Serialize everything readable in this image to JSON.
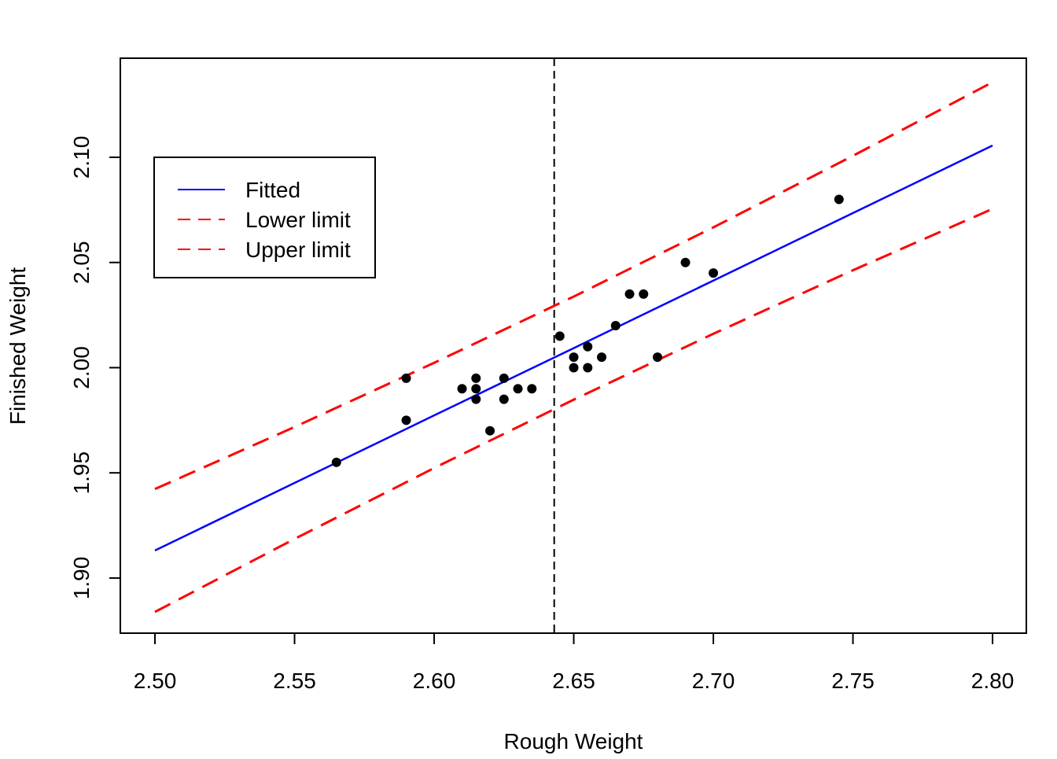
{
  "chart_data": {
    "type": "scatter",
    "x_label": "Rough Weight",
    "y_label": "Finished Weight",
    "xlim": [
      2.4876,
      2.8121
    ],
    "ylim": [
      1.8738,
      2.1471
    ],
    "xticks": [
      {
        "value": 2.5,
        "label": "2.50"
      },
      {
        "value": 2.55,
        "label": "2.55"
      },
      {
        "value": 2.6,
        "label": "2.60"
      },
      {
        "value": 2.65,
        "label": "2.65"
      },
      {
        "value": 2.7,
        "label": "2.70"
      },
      {
        "value": 2.75,
        "label": "2.75"
      },
      {
        "value": 2.8,
        "label": "2.80"
      }
    ],
    "yticks": [
      {
        "value": 1.9,
        "label": "1.90"
      },
      {
        "value": 1.95,
        "label": "1.95"
      },
      {
        "value": 2.0,
        "label": "2.00"
      },
      {
        "value": 2.05,
        "label": "2.05"
      },
      {
        "value": 2.1,
        "label": "2.10"
      }
    ],
    "points": {
      "color": "#000000",
      "x": [
        2.565,
        2.59,
        2.59,
        2.61,
        2.615,
        2.615,
        2.615,
        2.62,
        2.625,
        2.625,
        2.63,
        2.635,
        2.645,
        2.65,
        2.65,
        2.655,
        2.655,
        2.66,
        2.665,
        2.67,
        2.675,
        2.68,
        2.69,
        2.7,
        2.745
      ],
      "y": [
        1.955,
        1.995,
        1.975,
        1.99,
        1.995,
        1.99,
        1.985,
        1.97,
        1.995,
        1.985,
        1.99,
        1.99,
        2.015,
        2.005,
        2.0,
        2.01,
        2.0,
        2.005,
        2.02,
        2.035,
        2.035,
        2.005,
        2.05,
        2.045,
        2.08
      ]
    },
    "series": [
      {
        "name": "Fitted",
        "color": "#0000ff",
        "dashed": false,
        "x": [
          2.5,
          2.55,
          2.6,
          2.65,
          2.7,
          2.75,
          2.8
        ],
        "values": [
          1.9131,
          1.9452,
          1.9773,
          2.0093,
          2.0414,
          2.0735,
          2.1056
        ]
      },
      {
        "name": "Lower limit",
        "color": "#ff0000",
        "dashed": true,
        "x": [
          2.5,
          2.55,
          2.6,
          2.65,
          2.7,
          2.75,
          2.8
        ],
        "values": [
          1.8839,
          1.9186,
          1.9523,
          1.9848,
          2.0161,
          2.0463,
          2.0755
        ]
      },
      {
        "name": "Upper limit",
        "color": "#ff0000",
        "dashed": true,
        "x": [
          2.5,
          2.55,
          2.6,
          2.65,
          2.7,
          2.75,
          2.8
        ],
        "values": [
          1.9423,
          1.9718,
          2.0023,
          2.0338,
          2.0667,
          2.1007,
          2.1357
        ]
      }
    ],
    "vline": 2.643,
    "legend": "top-left"
  }
}
